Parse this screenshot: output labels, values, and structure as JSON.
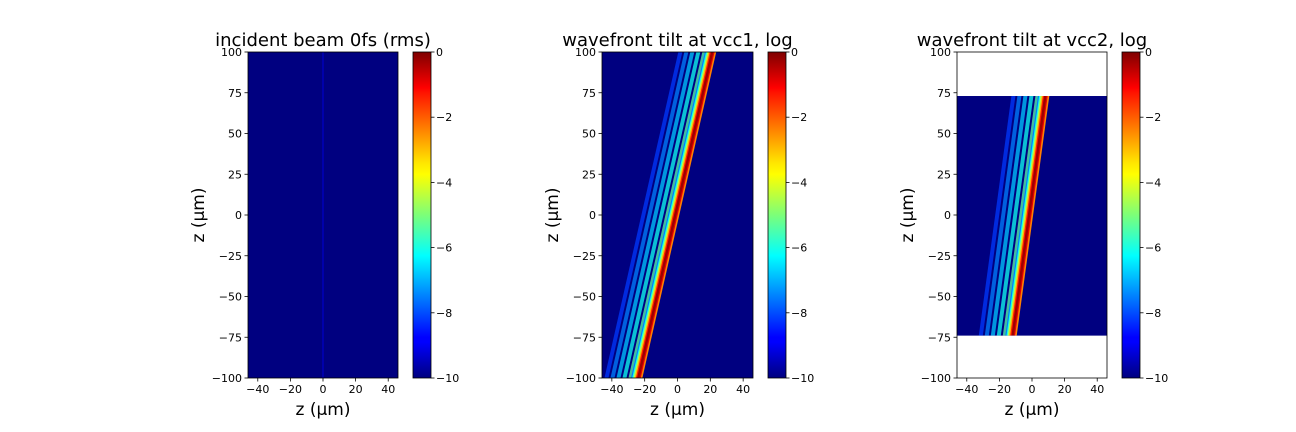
{
  "chart_data": [
    {
      "type": "heatmap",
      "title": "incident beam 0fs (rms)",
      "xlabel": "z (μm)",
      "ylabel": "z (μm)",
      "xlim": [
        -46,
        46
      ],
      "ylim": [
        -100,
        100
      ],
      "xticks": [
        -40,
        -20,
        0,
        20,
        40
      ],
      "yticks": [
        100,
        75,
        50,
        25,
        0,
        -25,
        -50,
        -75,
        -100
      ],
      "colorbar": {
        "min": -10,
        "max": 0,
        "ticks": [
          0,
          -2,
          -4,
          -6,
          -8,
          -10
        ],
        "colormap": "jet"
      },
      "data_extent_y": [
        -100,
        100
      ],
      "feature": {
        "kind": "vertical-line",
        "x": 0,
        "value": -9.3
      },
      "background_value": -10
    },
    {
      "type": "heatmap",
      "title": "wavefront tilt at vcc1, log",
      "xlabel": "z (μm)",
      "ylabel": "z (μm)",
      "xlim": [
        -46,
        46
      ],
      "ylim": [
        -100,
        100
      ],
      "xticks": [
        -40,
        -20,
        0,
        20,
        40
      ],
      "yticks": [
        100,
        75,
        50,
        25,
        0,
        -25,
        -50,
        -75,
        -100
      ],
      "colorbar": {
        "min": -10,
        "max": 0,
        "ticks": [
          0,
          -2,
          -4,
          -6,
          -8,
          -10
        ],
        "colormap": "jet"
      },
      "data_extent_y": [
        -100,
        100
      ],
      "feature": {
        "kind": "tilted-beam",
        "x_at_ymin": -25,
        "x_at_ymax": 20,
        "peak_value": 0
      },
      "background_value": -10
    },
    {
      "type": "heatmap",
      "title": "wavefront tilt at vcc2, log",
      "xlabel": "z (μm)",
      "ylabel": "z (μm)",
      "xlim": [
        -46,
        46
      ],
      "ylim": [
        -100,
        100
      ],
      "xticks": [
        -40,
        -20,
        0,
        20,
        40
      ],
      "yticks": [
        100,
        75,
        50,
        25,
        0,
        -25,
        -50,
        -75,
        -100
      ],
      "colorbar": {
        "min": -10,
        "max": 0,
        "ticks": [
          0,
          -2,
          -4,
          -6,
          -8,
          -10
        ],
        "colormap": "jet"
      },
      "data_extent_y": [
        -74,
        73
      ],
      "feature": {
        "kind": "tilted-beam",
        "x_at_ymin": -13,
        "x_at_ymax": 7,
        "peak_value": 0
      },
      "background_value": -10
    }
  ]
}
